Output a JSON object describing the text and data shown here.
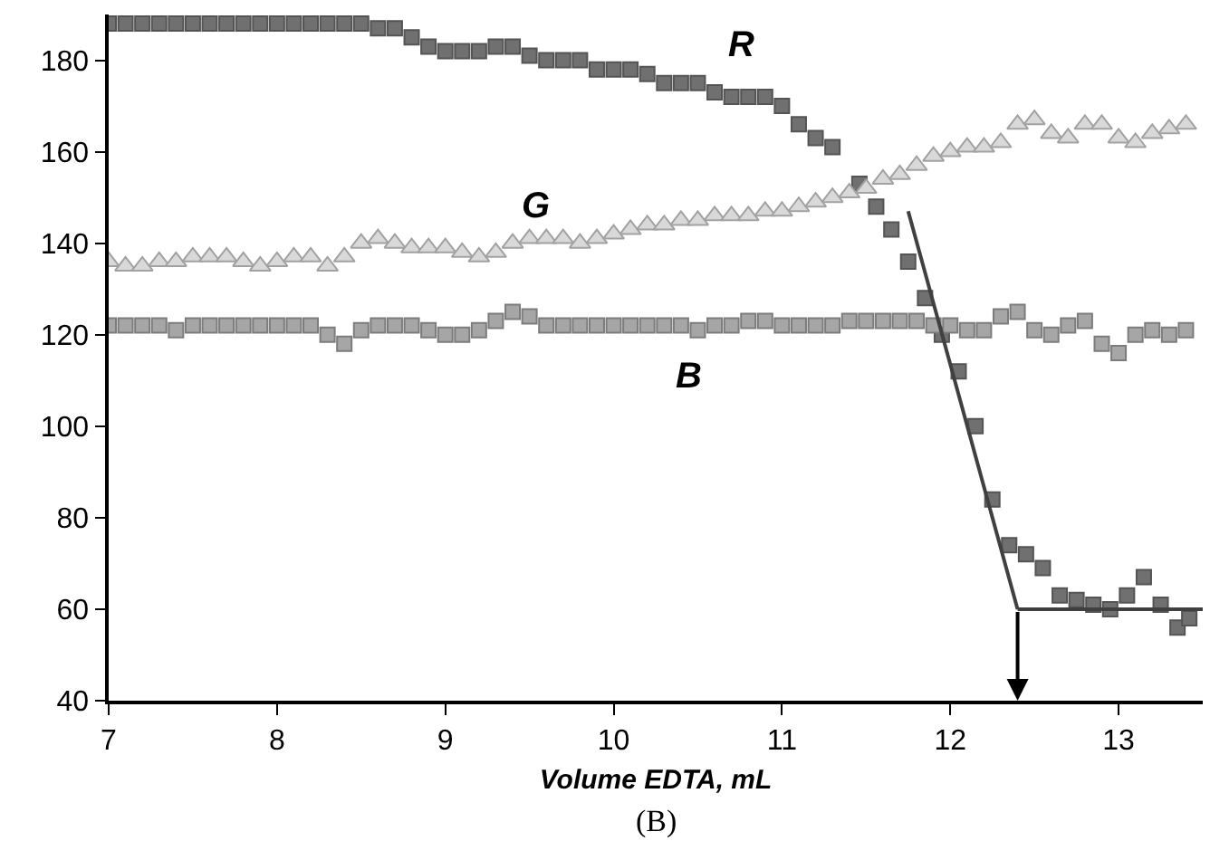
{
  "chart_data": {
    "type": "scatter",
    "xlabel": "Volume EDTA, mL",
    "xlim": [
      7,
      13.5
    ],
    "xticks": [
      7,
      8,
      9,
      10,
      11,
      12,
      13
    ],
    "ylim": [
      40,
      190
    ],
    "yticks": [
      40,
      60,
      80,
      100,
      120,
      140,
      160,
      180
    ],
    "legend": false,
    "series": [
      {
        "name": "R",
        "color": "#707070",
        "marker": "square",
        "x": [
          7.0,
          7.1,
          7.2,
          7.3,
          7.4,
          7.5,
          7.6,
          7.7,
          7.8,
          7.9,
          8.0,
          8.1,
          8.2,
          8.3,
          8.4,
          8.5,
          8.6,
          8.7,
          8.8,
          8.9,
          9.0,
          9.1,
          9.2,
          9.3,
          9.4,
          9.5,
          9.6,
          9.7,
          9.8,
          9.9,
          10.0,
          10.1,
          10.2,
          10.3,
          10.4,
          10.5,
          10.6,
          10.7,
          10.8,
          10.9,
          11.0,
          11.1,
          11.2,
          11.3,
          11.46,
          11.56,
          11.65,
          11.75,
          11.85,
          11.95,
          12.05,
          12.15,
          12.25,
          12.35,
          12.45,
          12.55,
          12.65,
          12.75,
          12.85,
          12.95,
          13.05,
          13.15,
          13.25,
          13.35,
          13.42
        ],
        "values": [
          188,
          188,
          188,
          188,
          188,
          188,
          188,
          188,
          188,
          188,
          188,
          188,
          188,
          188,
          188,
          188,
          187,
          187,
          185,
          183,
          182,
          182,
          182,
          183,
          183,
          181,
          180,
          180,
          180,
          178,
          178,
          178,
          177,
          175,
          175,
          175,
          173,
          172,
          172,
          172,
          170,
          166,
          163,
          161,
          153,
          148,
          143,
          136,
          128,
          120,
          112,
          100,
          84,
          74,
          72,
          69,
          63,
          62,
          61,
          60,
          63,
          67,
          61,
          56,
          58
        ]
      },
      {
        "name": "G",
        "color": "#d9d9d9",
        "marker": "triangle",
        "x": [
          7.0,
          7.1,
          7.2,
          7.3,
          7.4,
          7.5,
          7.6,
          7.7,
          7.8,
          7.9,
          8.0,
          8.1,
          8.2,
          8.3,
          8.4,
          8.5,
          8.6,
          8.7,
          8.8,
          8.9,
          9.0,
          9.1,
          9.2,
          9.3,
          9.4,
          9.5,
          9.6,
          9.7,
          9.8,
          9.9,
          10.0,
          10.1,
          10.2,
          10.3,
          10.4,
          10.5,
          10.6,
          10.7,
          10.8,
          10.9,
          11.0,
          11.1,
          11.2,
          11.3,
          11.4,
          11.5,
          11.6,
          11.7,
          11.8,
          11.9,
          12.0,
          12.1,
          12.2,
          12.3,
          12.4,
          12.5,
          12.6,
          12.7,
          12.8,
          12.9,
          13.0,
          13.1,
          13.2,
          13.3,
          13.4
        ],
        "values": [
          136,
          135,
          135,
          136,
          136,
          137,
          137,
          137,
          136,
          135,
          136,
          137,
          137,
          135,
          137,
          140,
          141,
          140,
          139,
          139,
          139,
          138,
          137,
          138,
          140,
          141,
          141,
          141,
          140,
          141,
          142,
          143,
          144,
          144,
          145,
          145,
          146,
          146,
          146,
          147,
          147,
          148,
          149,
          150,
          151,
          152,
          154,
          155,
          157,
          159,
          160,
          161,
          161,
          162,
          166,
          167,
          164,
          163,
          166,
          166,
          163,
          162,
          164,
          165,
          166
        ]
      },
      {
        "name": "B",
        "color": "#a6a6a6",
        "marker": "square",
        "x": [
          7.0,
          7.1,
          7.2,
          7.3,
          7.4,
          7.5,
          7.6,
          7.7,
          7.8,
          7.9,
          8.0,
          8.1,
          8.2,
          8.3,
          8.4,
          8.5,
          8.6,
          8.7,
          8.8,
          8.9,
          9.0,
          9.1,
          9.2,
          9.3,
          9.4,
          9.5,
          9.6,
          9.7,
          9.8,
          9.9,
          10.0,
          10.1,
          10.2,
          10.3,
          10.4,
          10.5,
          10.6,
          10.7,
          10.8,
          10.9,
          11.0,
          11.1,
          11.2,
          11.3,
          11.4,
          11.5,
          11.6,
          11.7,
          11.8,
          11.9,
          12.0,
          12.1,
          12.2,
          12.3,
          12.4,
          12.5,
          12.6,
          12.7,
          12.8,
          12.9,
          13.0,
          13.1,
          13.2,
          13.3,
          13.4
        ],
        "values": [
          122,
          122,
          122,
          122,
          121,
          122,
          122,
          122,
          122,
          122,
          122,
          122,
          122,
          120,
          118,
          121,
          122,
          122,
          122,
          121,
          120,
          120,
          121,
          123,
          125,
          124,
          122,
          122,
          122,
          122,
          122,
          122,
          122,
          122,
          122,
          121,
          122,
          122,
          123,
          123,
          122,
          122,
          122,
          122,
          123,
          123,
          123,
          123,
          123,
          122,
          122,
          121,
          121,
          124,
          125,
          121,
          120,
          122,
          123,
          118,
          116,
          120,
          121,
          120,
          121
        ]
      },
      {
        "type": "line",
        "color": "#404040",
        "marker": "none",
        "x": [
          11.75,
          12.4
        ],
        "values": [
          147,
          60
        ]
      },
      {
        "type": "line",
        "color": "#404040",
        "marker": "none",
        "x": [
          12.4,
          13.5
        ],
        "values": [
          60,
          60
        ]
      }
    ],
    "annotations": [
      "(B)"
    ]
  }
}
